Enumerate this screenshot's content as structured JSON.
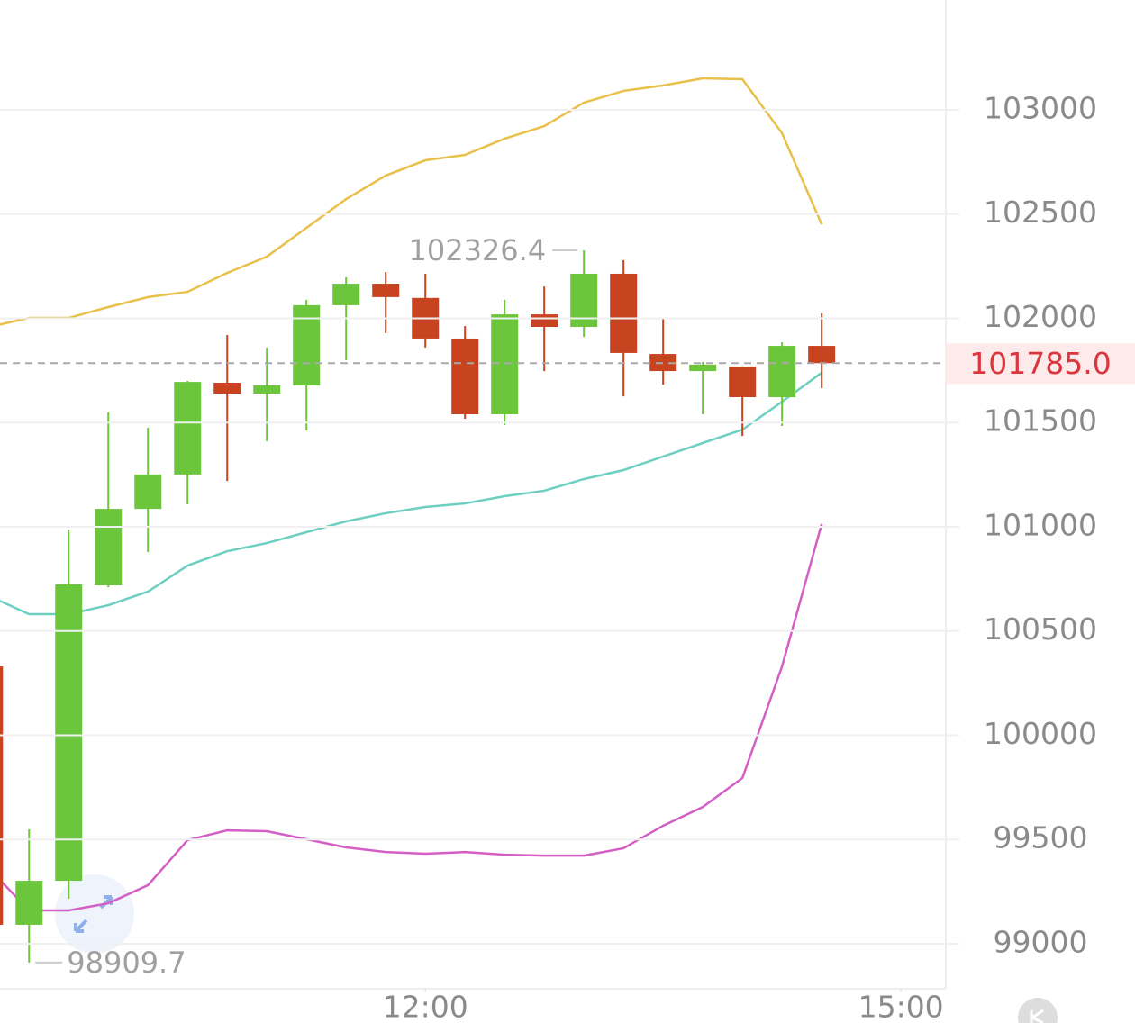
{
  "chart_data": {
    "type": "candlestick",
    "x": [
      555,
      570,
      585,
      600,
      615,
      630,
      645,
      660,
      675,
      690,
      705,
      720,
      735,
      750,
      765,
      780,
      795,
      810,
      825,
      840,
      855,
      870
    ],
    "open": [
      100330,
      99091,
      99302,
      100719,
      101086,
      101251,
      101691,
      101639,
      101678,
      102063,
      102166,
      102098,
      101903,
      101540,
      102019,
      101959,
      102214,
      101829,
      101747,
      101769,
      101622,
      101868
    ],
    "high": [
      100340,
      99549,
      100987,
      101549,
      101475,
      101700,
      101920,
      101860,
      102089,
      102197,
      102222,
      102214,
      101963,
      102089,
      102153,
      102326.4,
      102279,
      102002,
      101791,
      101770,
      101885,
      102024
    ],
    "low": [
      99080,
      98909.7,
      99216,
      100710,
      100879,
      101108,
      101220,
      101410,
      101462,
      101799,
      101929,
      101860,
      101518,
      101488,
      101747,
      101911,
      101626,
      101682,
      101540,
      101436,
      101484,
      101665
    ],
    "close": [
      99091,
      99302,
      100724,
      101086,
      101251,
      101695,
      101639,
      101678,
      102063,
      102166,
      102102,
      101903,
      101540,
      102019,
      101959,
      102214,
      101834,
      101747,
      101778,
      101622,
      101868,
      101785
    ],
    "up_color": "#6cc63c",
    "down_color": "#c8431f",
    "bands": [
      {
        "color": "#e8c04a",
        "values": [
          101959,
          102002,
          102002,
          102054,
          102102,
          102127,
          102218,
          102296,
          102434,
          102572,
          102685,
          102758,
          102784,
          102862,
          102922,
          103035,
          103091,
          103117,
          103151,
          103147,
          102888,
          102451
        ]
      },
      {
        "color": "#6ccfc0",
        "values": [
          100667,
          100581,
          100581,
          100624,
          100689,
          100814,
          100883,
          100922,
          100974,
          101026,
          101065,
          101095,
          101112,
          101147,
          101173,
          101229,
          101272,
          101337,
          101402,
          101466,
          101600,
          101739
        ]
      },
      {
        "color": "#d35fc6",
        "values": [
          99358,
          99160,
          99160,
          99194,
          99281,
          99497,
          99544,
          99540,
          99501,
          99462,
          99440,
          99432,
          99440,
          99427,
          99423,
          99423,
          99458,
          99566,
          99656,
          99795,
          100330,
          101013
        ]
      }
    ],
    "last_price": {
      "value": 101785,
      "label": "101785.0"
    },
    "xlim": [
      559,
      917
    ],
    "xticks": [
      {
        "value": 720,
        "label": "12:00"
      },
      {
        "value": 900,
        "label": "15:00"
      }
    ],
    "ylim": [
      98784,
      103527
    ],
    "yticks": [
      99000,
      99500,
      100000,
      100500,
      101000,
      101500,
      102000,
      102500,
      103000
    ],
    "grid": true
  }
}
